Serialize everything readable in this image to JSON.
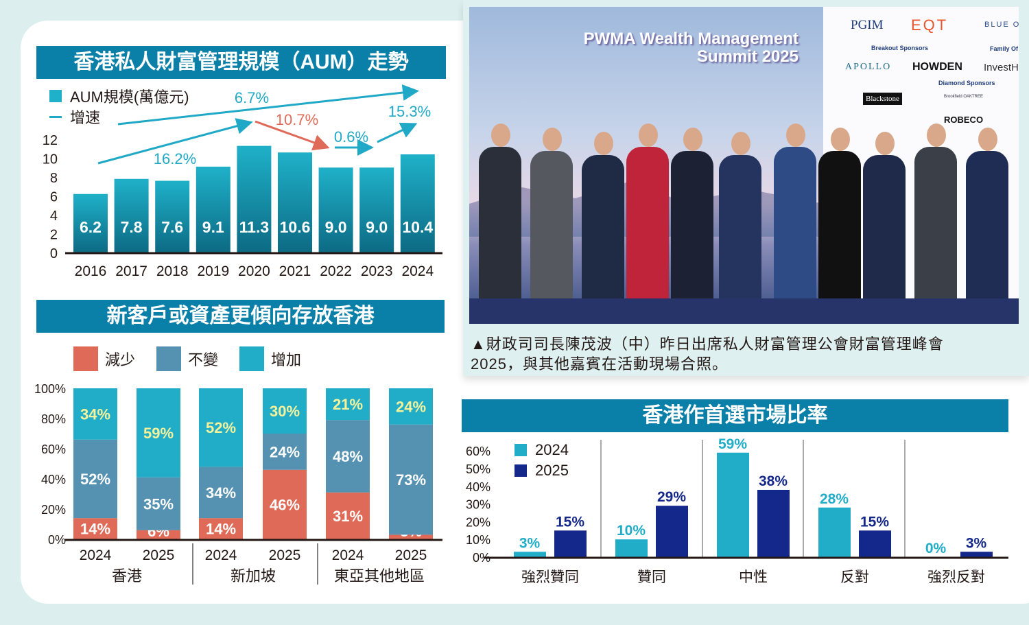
{
  "colors": {
    "title_bar": "#0a7fa8",
    "aum_bar_top": "#1fb1c9",
    "aum_bar_bottom": "#0d6a84",
    "growth_up": "#1fa9c6",
    "growth_down": "#e06a58",
    "decrease": "#e06a58",
    "unchanged": "#5591b0",
    "increase": "#21adc8",
    "increase_label": "#f6f29c",
    "y2024": "#21adc8",
    "y2025": "#13288a"
  },
  "photo": {
    "banner_line1": "PWMA Wealth Management",
    "banner_line2": "Summit 2025",
    "logos": [
      "PGIM",
      "EQT",
      "BLUE O",
      "Breakout Sponsors",
      "Family Of",
      "APOLLO",
      "HOWDEN",
      "InvestHK",
      "Diamond Sponsors",
      "Blackstone",
      "Brookfield OAKTREE",
      "ROBECO"
    ],
    "caption_line1": "▲財政司司長陳茂波（中）昨日出席私人財富管理公會財富管理峰會",
    "caption_line2": "2025，與其他嘉賓在活動現場合照。"
  },
  "chart_data": [
    {
      "type": "bar",
      "title": "香港私人財富管理規模（AUM）走勢",
      "legend": {
        "bar": "AUM規模(萬億元)",
        "line": "增速"
      },
      "categories": [
        "2016",
        "2017",
        "2018",
        "2019",
        "2020",
        "2021",
        "2022",
        "2023",
        "2024"
      ],
      "values": [
        6.2,
        7.8,
        7.6,
        9.1,
        11.3,
        10.6,
        9.0,
        9.0,
        10.4
      ],
      "value_labels": [
        "6.2",
        "7.8",
        "7.6",
        "9.1",
        "11.3",
        "10.6",
        "9.0",
        "9.0",
        "10.4"
      ],
      "ylim": [
        0,
        12
      ],
      "yticks": [
        "0",
        "2",
        "4",
        "6",
        "8",
        "10",
        "12"
      ],
      "growth_annotations": [
        {
          "label": "6.7%",
          "from": "2016",
          "to": "2024",
          "direction": "up"
        },
        {
          "label": "16.2%",
          "from": "2016",
          "to": "2020",
          "direction": "up"
        },
        {
          "label": "10.7%",
          "from": "2020",
          "to": "2022",
          "direction": "down"
        },
        {
          "label": "0.6%",
          "from": "2022",
          "to": "2023",
          "direction": "up"
        },
        {
          "label": "15.3%",
          "from": "2023",
          "to": "2024",
          "direction": "up"
        }
      ]
    },
    {
      "type": "bar",
      "stacked": true,
      "title": "新客戶或資產更傾向存放香港",
      "categories": [
        "2024",
        "2025",
        "2024",
        "2025",
        "2024",
        "2025"
      ],
      "groups": [
        "香港",
        "新加坡",
        "東亞其他地區"
      ],
      "series": [
        {
          "name": "減少",
          "values": [
            14,
            6,
            14,
            46,
            31,
            3
          ]
        },
        {
          "name": "不變",
          "values": [
            52,
            35,
            34,
            24,
            48,
            73
          ]
        },
        {
          "name": "增加",
          "values": [
            34,
            59,
            52,
            30,
            21,
            24
          ]
        }
      ],
      "ylim": [
        0,
        100
      ],
      "yticks": [
        "0%",
        "20%",
        "40%",
        "60%",
        "80%",
        "100%"
      ]
    },
    {
      "type": "bar",
      "title": "香港作首選市場比率",
      "categories": [
        "強烈贊同",
        "贊同",
        "中性",
        "反對",
        "強烈反對"
      ],
      "series": [
        {
          "name": "2024",
          "values": [
            3,
            10,
            59,
            28,
            0
          ]
        },
        {
          "name": "2025",
          "values": [
            15,
            29,
            38,
            15,
            3
          ]
        }
      ],
      "ylim": [
        0,
        60
      ],
      "yticks": [
        "0%",
        "10%",
        "20%",
        "30%",
        "40%",
        "50%",
        "60%"
      ]
    }
  ]
}
